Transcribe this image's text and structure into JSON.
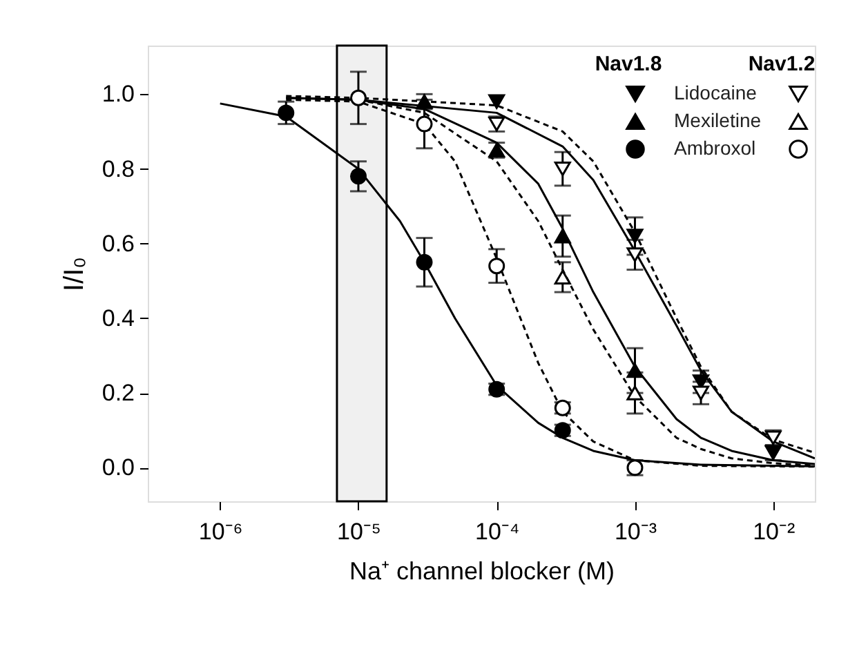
{
  "chart_data": {
    "type": "scatter",
    "xlabel": "Na⁺ channel blocker (M)",
    "ylabel": "I/I₀",
    "log": "x",
    "grid": false,
    "legend": "top right",
    "xlim": [
      3e-07,
      0.02
    ],
    "ylim": [
      -0.09,
      1.13
    ],
    "xticks": [
      {
        "value": 1e-06,
        "label": "10⁻⁶"
      },
      {
        "value": 1e-05,
        "label": "10⁻⁵"
      },
      {
        "value": 0.0001,
        "label": "10⁻⁴"
      },
      {
        "value": 0.001,
        "label": "10⁻³"
      },
      {
        "value": 0.01,
        "label": "10⁻²"
      }
    ],
    "yticks": [
      {
        "value": 0,
        "label": "0.0"
      },
      {
        "value": 0.2,
        "label": "0.2"
      },
      {
        "value": 0.4,
        "label": "0.4"
      },
      {
        "value": 0.6,
        "label": "0.6"
      },
      {
        "value": 0.8,
        "label": "0.8"
      },
      {
        "value": 1,
        "label": "1.0"
      }
    ],
    "bands": [
      {
        "axis": "x",
        "from": 7e-06,
        "to": 1.6e-05,
        "color": "#f0f0f0"
      }
    ],
    "annotations": [
      "Nav1.8",
      "Nav1.2"
    ],
    "series": [
      {
        "type": "line",
        "line_style": "solid",
        "marker": "none",
        "color": "#000000",
        "x": [
          1e-06,
          3e-06,
          1e-05,
          2e-05,
          3e-05,
          5e-05,
          0.0001,
          0.0002,
          0.0003,
          0.0005,
          0.001,
          0.003,
          0.01,
          0.02
        ],
        "values": [
          0.975,
          0.94,
          0.8,
          0.66,
          0.55,
          0.4,
          0.22,
          0.12,
          0.08,
          0.045,
          0.02,
          0.008,
          0.005,
          0.004
        ]
      },
      {
        "type": "line",
        "line_style": "dashed",
        "marker": "none",
        "color": "#000000",
        "x": [
          3e-06,
          1e-05,
          3e-05,
          5e-05,
          0.0001,
          0.0002,
          0.0003,
          0.0005,
          0.001,
          0.003,
          0.02
        ],
        "values": [
          0.985,
          0.98,
          0.92,
          0.82,
          0.56,
          0.28,
          0.15,
          0.07,
          0.02,
          0.005,
          0.003
        ]
      },
      {
        "type": "line",
        "line_style": "solid",
        "marker": "none",
        "color": "#000000",
        "x": [
          3e-06,
          1e-05,
          3e-05,
          0.0001,
          0.0002,
          0.0003,
          0.0005,
          0.001,
          0.002,
          0.003,
          0.005,
          0.01,
          0.02
        ],
        "values": [
          0.99,
          0.985,
          0.96,
          0.87,
          0.76,
          0.64,
          0.47,
          0.27,
          0.13,
          0.08,
          0.045,
          0.02,
          0.01
        ]
      },
      {
        "type": "line",
        "line_style": "dashed",
        "marker": "none",
        "color": "#000000",
        "x": [
          1e-05,
          3e-05,
          0.0001,
          0.0002,
          0.0003,
          0.0005,
          0.001,
          0.002,
          0.003,
          0.005,
          0.01,
          0.02
        ],
        "values": [
          0.985,
          0.95,
          0.82,
          0.66,
          0.53,
          0.37,
          0.19,
          0.08,
          0.05,
          0.025,
          0.012,
          0.006
        ]
      },
      {
        "type": "line",
        "line_style": "solid",
        "marker": "none",
        "color": "#000000",
        "x": [
          3e-06,
          1e-05,
          0.0001,
          0.0003,
          0.0005,
          0.001,
          0.002,
          0.003,
          0.005,
          0.01,
          0.02
        ],
        "values": [
          0.99,
          0.985,
          0.95,
          0.86,
          0.77,
          0.58,
          0.38,
          0.26,
          0.15,
          0.07,
          0.025
        ]
      },
      {
        "type": "line",
        "line_style": "dashed",
        "marker": "none",
        "color": "#000000",
        "x": [
          3e-06,
          1e-05,
          0.0001,
          0.0003,
          0.0005,
          0.001,
          0.002,
          0.003,
          0.005,
          0.01,
          0.02
        ],
        "values": [
          0.995,
          0.99,
          0.97,
          0.9,
          0.82,
          0.63,
          0.4,
          0.27,
          0.15,
          0.075,
          0.04
        ]
      },
      {
        "name": "Lidocaine",
        "marker": "triangle-down",
        "color": "#000000",
        "x": [
          0.0001,
          0.001,
          0.003,
          0.01
        ],
        "values": [
          0.98,
          0.62,
          0.23,
          0.04
        ],
        "errors": [
          null,
          0.05,
          0.03,
          0.02
        ]
      },
      {
        "name": "Mexiletine",
        "marker": "triangle",
        "color": "#000000",
        "x": [
          3e-05,
          0.0001,
          0.0003,
          0.001
        ],
        "values": [
          0.98,
          0.85,
          0.62,
          0.26
        ],
        "errors": [
          0.02,
          0.02,
          0.055,
          0.06
        ]
      },
      {
        "name": "Ambroxol",
        "marker": "circle",
        "color": "#000000",
        "x": [
          3e-06,
          1e-05,
          3e-05,
          0.0001,
          0.0003
        ],
        "values": [
          0.95,
          0.78,
          0.55,
          0.21,
          0.1
        ],
        "errors": [
          0.03,
          0.04,
          0.065,
          0.015,
          0.015
        ]
      },
      {
        "marker": "triangle-down",
        "color": "#000000",
        "x": [
          0.0001,
          0.0003,
          0.001,
          0.003,
          0.01
        ],
        "values": [
          0.92,
          0.8,
          0.57,
          0.2,
          0.08
        ],
        "errors": [
          0.02,
          0.045,
          0.04,
          0.03,
          0.02
        ]
      },
      {
        "marker": "triangle",
        "color": "#000000",
        "x": [
          0.0003,
          0.001
        ],
        "values": [
          0.51,
          0.2
        ],
        "errors": [
          0.04,
          0.055
        ]
      },
      {
        "marker": "circle",
        "color": "#000000",
        "x": [
          1e-05,
          3e-05,
          0.0001,
          0.0003,
          0.001
        ],
        "values": [
          0.99,
          0.92,
          0.54,
          0.16,
          0.0
        ],
        "errors": [
          0.07,
          0.065,
          0.045,
          0.015,
          0.02
        ]
      }
    ]
  }
}
